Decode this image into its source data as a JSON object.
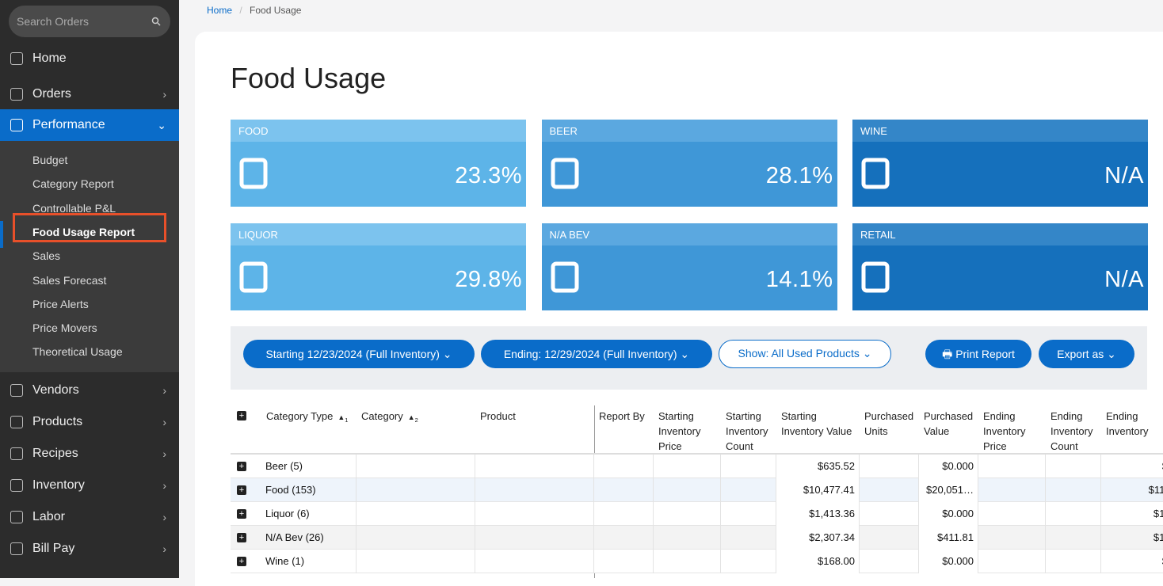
{
  "sidebar": {
    "search_placeholder": "Search Orders",
    "nav_top": [
      "Home",
      "Orders"
    ],
    "active": "Performance",
    "submenu": [
      "Budget",
      "Category Report",
      "Controllable P&L",
      "Food Usage Report",
      "Sales",
      "Sales Forecast",
      "Price Alerts",
      "Price Movers",
      "Theoretical Usage"
    ],
    "nav_bottom": [
      "Vendors",
      "Products",
      "Recipes",
      "Inventory",
      "Labor",
      "Bill Pay"
    ]
  },
  "breadcrumb": [
    "Home",
    "Food Usage"
  ],
  "title": "Food Usage",
  "cards": [
    {
      "label": "FOOD",
      "value": "23.3%"
    },
    {
      "label": "BEER",
      "value": "28.1%"
    },
    {
      "label": "WINE",
      "value": "N/A"
    },
    {
      "label": "LIQUOR",
      "value": "29.8%"
    },
    {
      "label": "N/A BEV",
      "value": "14.1%"
    },
    {
      "label": "RETAIL",
      "value": "N/A"
    }
  ],
  "filters": {
    "starting": "Starting 12/23/2024 (Full Inventory)",
    "ending": "Ending: 12/29/2024 (Full Inventory)",
    "show": "Show: All Used Products",
    "print": "Print Report",
    "export": "Export as"
  },
  "table": {
    "columns": [
      {
        "key": "category_type",
        "label": "Category Type",
        "sort": "1"
      },
      {
        "key": "category",
        "label": "Category",
        "sort": "2"
      },
      {
        "key": "product",
        "label": "Product"
      },
      {
        "key": "report_by",
        "label": "Report By"
      },
      {
        "key": "sip",
        "label": "Starting Inventory Price"
      },
      {
        "key": "sic",
        "label": "Starting Inventory Count"
      },
      {
        "key": "siv",
        "label": "Starting Inventory Value"
      },
      {
        "key": "pu",
        "label": "Purchased Units"
      },
      {
        "key": "pv",
        "label": "Purchased Value"
      },
      {
        "key": "eip",
        "label": "Ending Inventory Price"
      },
      {
        "key": "eic",
        "label": "Ending Inventory Count"
      },
      {
        "key": "ei",
        "label": "Ending Inventory"
      }
    ],
    "rows": [
      {
        "category_type": "Beer (5)",
        "siv": "$635.52",
        "pv": "$0.000",
        "ei": "$"
      },
      {
        "category_type": "Food (153)",
        "siv": "$10,477.41",
        "pv": "$20,051…",
        "ei": "$11,"
      },
      {
        "category_type": "Liquor (6)",
        "siv": "$1,413.36",
        "pv": "$0.000",
        "ei": "$1,"
      },
      {
        "category_type": "N/A Bev (26)",
        "siv": "$2,307.34",
        "pv": "$411.81",
        "ei": "$1,"
      },
      {
        "category_type": "Wine (1)",
        "siv": "$168.00",
        "pv": "$0.000",
        "ei": "$"
      }
    ]
  }
}
